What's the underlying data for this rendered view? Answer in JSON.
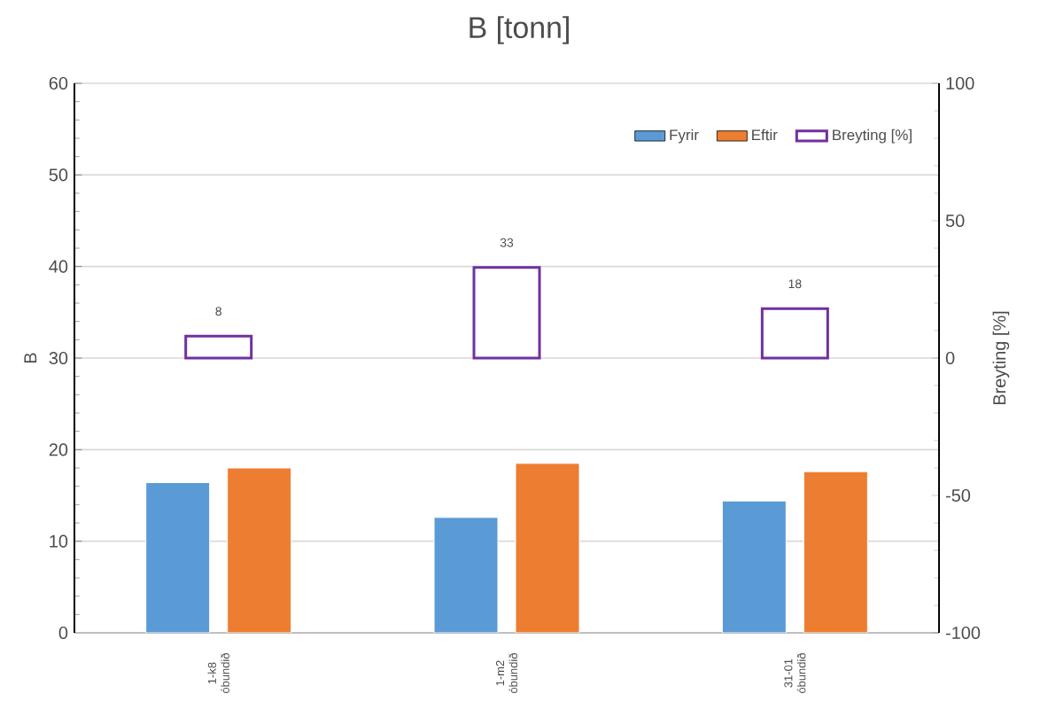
{
  "chart_data": {
    "type": "bar",
    "title": "B [tonn]",
    "ylabel": "B",
    "y2label": "Breyting [%]",
    "categories": [
      "1-k8 óbundið",
      "1-m2 óbundið",
      "31-01 óbundið"
    ],
    "series": [
      {
        "name": "Fyrir",
        "color": "#5b9bd5",
        "values": [
          16.4,
          12.6,
          14.4
        ]
      },
      {
        "name": "Eftir",
        "color": "#ed7d31",
        "values": [
          18.0,
          18.5,
          17.6
        ]
      },
      {
        "name": "Breyting [%]",
        "color": "#7030a0",
        "axis": "y2",
        "values": [
          8,
          33,
          18
        ],
        "value_labels": [
          "8",
          "33",
          "18"
        ]
      }
    ],
    "ylim": [
      0,
      60
    ],
    "yticks": [
      0,
      10,
      20,
      30,
      40,
      50,
      60
    ],
    "y2lim": [
      -100,
      100
    ],
    "y2ticks": [
      -100,
      -50,
      0,
      50,
      100
    ],
    "grid": "y",
    "legend": "top right"
  }
}
